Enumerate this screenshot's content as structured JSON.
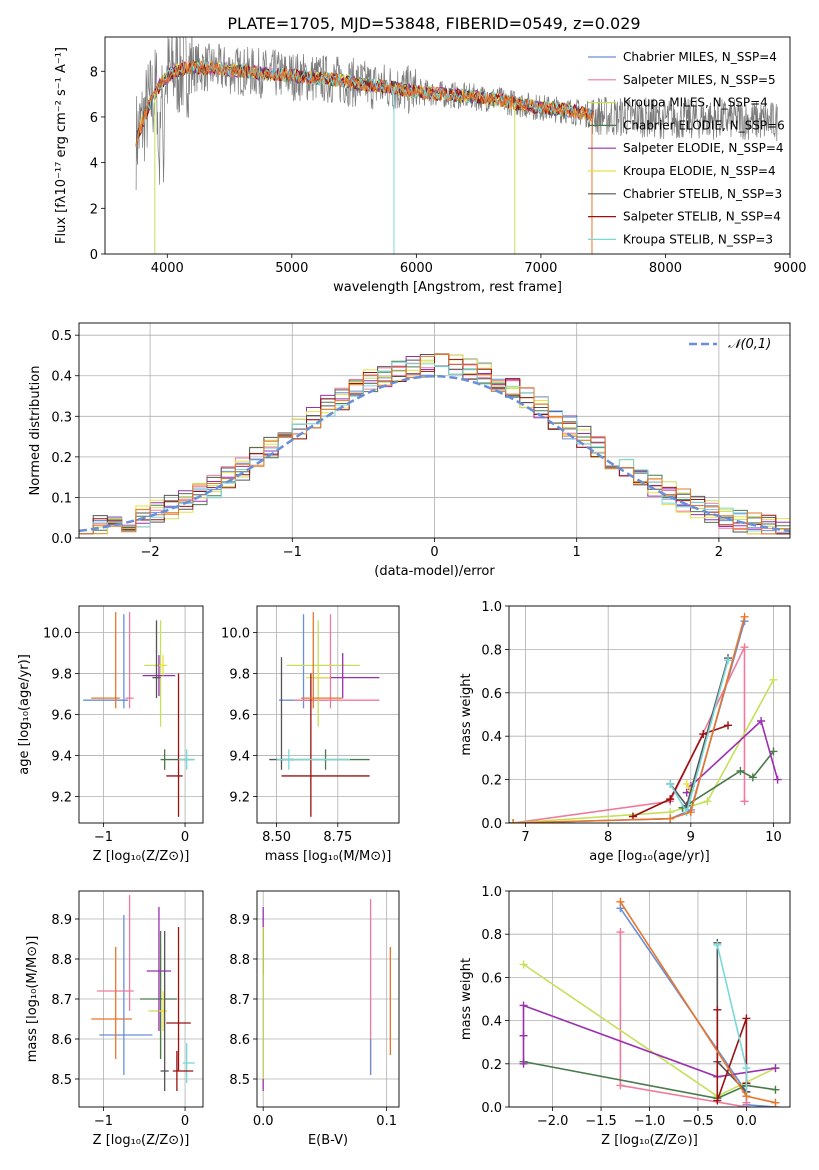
{
  "figure_title": "PLATE=1705, MJD=53848, FIBERID=0549, z=0.029",
  "colors": [
    "#6a8fd8",
    "#f07a9c",
    "#c5e05a",
    "#4a7a4a",
    "#9b2fb0",
    "#e8e046",
    "#555555",
    "#9b1010",
    "#7ad8d8",
    "#e8762a"
  ],
  "chart_data": [
    {
      "type": "line",
      "title": "PLATE=1705, MJD=53848, FIBERID=0549, z=0.029",
      "xlabel": "wavelength [Angstrom, rest frame]",
      "ylabel": "Flux [fλ10⁻¹⁷ erg cm⁻² s⁻¹ A⁻¹]",
      "xlim": [
        3500,
        9000
      ],
      "ylim": [
        0,
        9.5
      ],
      "xticks": [
        4000,
        5000,
        6000,
        7000,
        8000,
        9000
      ],
      "yticks": [
        0,
        2,
        4,
        6,
        8
      ],
      "legend_position": "top-right",
      "data_series_name": "",
      "data_envelope": {
        "x": [
          3750,
          3850,
          3950,
          4050,
          4200,
          4400,
          4600,
          4800,
          5000,
          5200,
          5400,
          5600,
          5800,
          6000,
          6200,
          6400,
          6600,
          6800,
          7000,
          7200,
          7400,
          7600,
          7800,
          8000,
          8200,
          8400,
          8600,
          8800,
          8900
        ],
        "y": [
          5.0,
          6.5,
          7.5,
          8.0,
          8.2,
          8.1,
          8.0,
          7.9,
          7.8,
          7.7,
          7.6,
          7.4,
          7.3,
          7.1,
          7.0,
          6.9,
          6.8,
          6.6,
          6.4,
          6.3,
          6.1,
          6.0,
          6.0,
          5.9,
          5.9,
          5.9,
          5.9,
          5.8,
          5.8
        ]
      },
      "series": [
        {
          "name": "Chabrier MILES, N_SSP=4"
        },
        {
          "name": "Salpeter MILES, N_SSP=5"
        },
        {
          "name": "Kroupa MILES, N_SSP=4"
        },
        {
          "name": "Chabrier ELODIE, N_SSP=6"
        },
        {
          "name": "Salpeter ELODIE, N_SSP=4"
        },
        {
          "name": "Kroupa ELODIE, N_SSP=4"
        },
        {
          "name": "Chabrier STELIB, N_SSP=3"
        },
        {
          "name": "Salpeter STELIB, N_SSP=4"
        },
        {
          "name": "Kroupa STELIB, N_SSP=3"
        }
      ]
    },
    {
      "type": "line",
      "xlabel": "(data-model)/error",
      "ylabel": "Normed distribution",
      "xlim": [
        -2.5,
        2.5
      ],
      "ylim": [
        0,
        0.53
      ],
      "xticks": [
        -2,
        -1,
        0,
        1,
        2
      ],
      "yticks": [
        0.0,
        0.1,
        0.2,
        0.3,
        0.4,
        0.5
      ],
      "grid": true,
      "legend_position": "top-right",
      "reference_curve": {
        "name": "𝒩(0,1)",
        "mean": 0,
        "sigma": 1
      },
      "histogram_bins": {
        "start": -2.5,
        "width": 0.1,
        "count": 50
      },
      "histogram_count": 10
    },
    {
      "type": "scatter",
      "xlabel": "Z [log₁₀(Z/Z⊙)]",
      "ylabel": "age  [log₁₀(age/yr)]",
      "xlim": [
        -1.3,
        0.22
      ],
      "ylim": [
        9.07,
        10.13
      ],
      "xticks": [
        -1,
        0
      ],
      "yticks": [
        9.2,
        9.4,
        9.6,
        9.8,
        10.0
      ],
      "grid": true,
      "points": [
        {
          "x": -0.75,
          "y": 9.67,
          "xerr": [
            0.5,
            0.05
          ],
          "yerr": [
            0.04,
            0.42
          ],
          "color": "#6a8fd8"
        },
        {
          "x": -0.68,
          "y": 9.68,
          "xerr": [
            0.05,
            0.05
          ],
          "yerr": [
            0.05,
            0.42
          ],
          "color": "#f07a9c"
        },
        {
          "x": -0.3,
          "y": 9.84,
          "xerr": [
            0.2,
            0.05
          ],
          "yerr": [
            0.3,
            0.22
          ],
          "color": "#c5e05a"
        },
        {
          "x": -0.25,
          "y": 9.38,
          "xerr": [
            0.05,
            0.35
          ],
          "yerr": [
            0.05,
            0.05
          ],
          "color": "#4a7a4a"
        },
        {
          "x": -0.32,
          "y": 9.79,
          "xerr": [
            0.2,
            0.2
          ],
          "yerr": [
            0.1,
            0.1
          ],
          "color": "#9b2fb0"
        },
        {
          "x": -0.27,
          "y": 9.84,
          "xerr": [
            0.05,
            0.05
          ],
          "yerr": [
            0.05,
            0.05
          ],
          "color": "#e8e046"
        },
        {
          "x": -0.35,
          "y": 9.78,
          "xerr": [
            0.05,
            0.05
          ],
          "yerr": [
            0.1,
            0.28
          ],
          "color": "#555555"
        },
        {
          "x": -0.08,
          "y": 9.3,
          "xerr": [
            0.15,
            0.05
          ],
          "yerr": [
            0.2,
            0.5
          ],
          "color": "#9b1010"
        },
        {
          "x": 0.02,
          "y": 9.38,
          "xerr": [
            0.1,
            0.1
          ],
          "yerr": [
            0.05,
            0.05
          ],
          "color": "#7ad8d8"
        },
        {
          "x": -0.85,
          "y": 9.68,
          "xerr": [
            0.3,
            0.05
          ],
          "yerr": [
            0.05,
            0.42
          ],
          "color": "#e8762a"
        }
      ]
    },
    {
      "type": "scatter",
      "xlabel": "mass [log₁₀(M/M⊙)]",
      "ylabel": "",
      "xlim": [
        8.42,
        9.0
      ],
      "ylim": [
        9.07,
        10.13
      ],
      "xticks": [
        8.5,
        8.75
      ],
      "yticks": [
        9.2,
        9.4,
        9.6,
        9.8,
        10.0
      ],
      "grid": true,
      "points": [
        {
          "x": 8.61,
          "y": 9.67,
          "xerr": [
            0.1,
            0.1
          ],
          "yerr": [
            0.04,
            0.42
          ],
          "color": "#6a8fd8"
        },
        {
          "x": 8.72,
          "y": 9.67,
          "xerr": [
            0.15,
            0.2
          ],
          "yerr": [
            0.04,
            0.42
          ],
          "color": "#f07a9c"
        },
        {
          "x": 8.67,
          "y": 9.84,
          "xerr": [
            0.13,
            0.17
          ],
          "yerr": [
            0.3,
            0.22
          ],
          "color": "#c5e05a"
        },
        {
          "x": 8.7,
          "y": 9.38,
          "xerr": [
            0.18,
            0.18
          ],
          "yerr": [
            0.05,
            0.05
          ],
          "color": "#4a7a4a"
        },
        {
          "x": 8.77,
          "y": 9.78,
          "xerr": [
            0.12,
            0.15
          ],
          "yerr": [
            0.1,
            0.12
          ],
          "color": "#9b2fb0"
        },
        {
          "x": 8.67,
          "y": 9.78,
          "xerr": [
            0.05,
            0.05
          ],
          "yerr": [
            0.05,
            0.05
          ],
          "color": "#e8e046"
        },
        {
          "x": 8.52,
          "y": 9.38,
          "xerr": [
            0.05,
            0.05
          ],
          "yerr": [
            0.05,
            0.5
          ],
          "color": "#555555"
        },
        {
          "x": 8.64,
          "y": 9.3,
          "xerr": [
            0.12,
            0.24
          ],
          "yerr": [
            0.2,
            0.5
          ],
          "color": "#9b1010"
        },
        {
          "x": 8.55,
          "y": 9.38,
          "xerr": [
            0.05,
            0.25
          ],
          "yerr": [
            0.05,
            0.05
          ],
          "color": "#7ad8d8"
        },
        {
          "x": 8.65,
          "y": 9.68,
          "xerr": [
            0.05,
            0.12
          ],
          "yerr": [
            0.05,
            0.42
          ],
          "color": "#e8762a"
        }
      ]
    },
    {
      "type": "line",
      "xlabel": "age  [log₁₀(age/yr)]",
      "ylabel": "mass weight",
      "xlim": [
        6.8,
        10.2
      ],
      "ylim": [
        0,
        1.0
      ],
      "xticks": [
        7,
        8,
        9,
        10
      ],
      "yticks": [
        0.0,
        0.2,
        0.4,
        0.6,
        0.8,
        1.0
      ],
      "grid": true,
      "series": [
        {
          "color": "#6a8fd8",
          "x": [
            6.85,
            8.75,
            9.0,
            9.65
          ],
          "y": [
            0.0,
            0.02,
            0.06,
            0.93
          ]
        },
        {
          "color": "#f07a9c",
          "x": [
            6.85,
            8.75,
            9.65,
            9.65
          ],
          "y": [
            0.0,
            0.1,
            0.81,
            0.1
          ]
        },
        {
          "color": "#c5e05a",
          "x": [
            6.85,
            8.75,
            9.2,
            10.0
          ],
          "y": [
            0.0,
            0.05,
            0.1,
            0.66
          ]
        },
        {
          "color": "#4a7a4a",
          "x": [
            8.9,
            8.9,
            9.6,
            9.75,
            10.0
          ],
          "y": [
            0.07,
            0.07,
            0.24,
            0.21,
            0.33
          ]
        },
        {
          "color": "#9b2fb0",
          "x": [
            8.95,
            9.0,
            9.85,
            10.05
          ],
          "y": [
            0.14,
            0.17,
            0.47,
            0.2
          ]
        },
        {
          "color": "#e8e046",
          "x": [
            8.95,
            9.0
          ],
          "y": [
            0.18,
            0.15
          ]
        },
        {
          "color": "#555555",
          "x": [
            8.75,
            8.95,
            9.45
          ],
          "y": [
            0.18,
            0.08,
            0.76
          ]
        },
        {
          "color": "#9b1010",
          "x": [
            8.3,
            8.75,
            9.15,
            9.45
          ],
          "y": [
            0.03,
            0.11,
            0.41,
            0.45
          ]
        },
        {
          "color": "#7ad8d8",
          "x": [
            8.75,
            8.95,
            9.45
          ],
          "y": [
            0.18,
            0.05,
            0.75
          ]
        },
        {
          "color": "#e8762a",
          "x": [
            6.85,
            8.75,
            9.0,
            9.65
          ],
          "y": [
            0.0,
            0.02,
            0.05,
            0.95
          ]
        }
      ]
    },
    {
      "type": "scatter",
      "xlabel": "Z [log₁₀(Z/Z⊙)]",
      "ylabel": "mass [log₁₀(M/M⊙)]",
      "xlim": [
        -1.3,
        0.22
      ],
      "ylim": [
        8.43,
        8.97
      ],
      "xticks": [
        -1,
        0
      ],
      "yticks": [
        8.5,
        8.6,
        8.7,
        8.8,
        8.9
      ],
      "grid": true,
      "points": [
        {
          "x": -0.75,
          "y": 8.61,
          "xerr": [
            0.3,
            0.35
          ],
          "yerr": [
            0.1,
            0.3
          ],
          "color": "#6a8fd8"
        },
        {
          "x": -0.68,
          "y": 8.72,
          "xerr": [
            0.4,
            0.05
          ],
          "yerr": [
            0.05,
            0.24
          ],
          "color": "#f07a9c"
        },
        {
          "x": -0.3,
          "y": 8.67,
          "xerr": [
            0.15,
            0.05
          ],
          "yerr": [
            0.12,
            0.17
          ],
          "color": "#c5e05a"
        },
        {
          "x": -0.3,
          "y": 8.7,
          "xerr": [
            0.25,
            0.2
          ],
          "yerr": [
            0.15,
            0.17
          ],
          "color": "#4a7a4a"
        },
        {
          "x": -0.32,
          "y": 8.77,
          "xerr": [
            0.15,
            0.15
          ],
          "yerr": [
            0.15,
            0.16
          ],
          "color": "#9b2fb0"
        },
        {
          "x": -0.27,
          "y": 8.67,
          "xerr": [
            0.05,
            0.05
          ],
          "yerr": [
            0.05,
            0.05
          ],
          "color": "#e8e046"
        },
        {
          "x": -0.25,
          "y": 8.52,
          "xerr": [
            0.05,
            0.05
          ],
          "yerr": [
            0.05,
            0.35
          ],
          "color": "#555555"
        },
        {
          "x": -0.08,
          "y": 8.64,
          "xerr": [
            0.15,
            0.15
          ],
          "yerr": [
            0.12,
            0.24
          ],
          "color": "#9b1010"
        },
        {
          "x": 0.02,
          "y": 8.54,
          "xerr": [
            0.05,
            0.1
          ],
          "yerr": [
            0.05,
            0.05
          ],
          "color": "#7ad8d8"
        },
        {
          "x": -0.85,
          "y": 8.65,
          "xerr": [
            0.3,
            0.2
          ],
          "yerr": [
            0.1,
            0.18
          ],
          "color": "#e8762a"
        },
        {
          "x": -0.1,
          "y": 8.52,
          "xerr": [
            0.05,
            0.2
          ],
          "yerr": [
            0.05,
            0.05
          ],
          "color": "#9b1010"
        }
      ]
    },
    {
      "type": "scatter",
      "xlabel": "E(B-V)",
      "ylabel": "",
      "xlim": [
        -0.005,
        0.11
      ],
      "ylim": [
        8.43,
        8.97
      ],
      "xticks": [
        0.0,
        0.1
      ],
      "yticks": [
        8.5,
        8.6,
        8.7,
        8.8,
        8.9
      ],
      "grid": true,
      "vertical_errors": [
        {
          "x": 0.0,
          "ymin": 8.47,
          "ymax": 8.93,
          "color": "#9b2fb0"
        },
        {
          "x": 0.0,
          "ymin": 8.76,
          "ymax": 8.88,
          "color": "#9b1010"
        },
        {
          "x": 0.0,
          "ymin": 8.5,
          "ymax": 8.88,
          "color": "#c5e05a"
        },
        {
          "x": 0.087,
          "ymin": 8.51,
          "ymax": 8.95,
          "color": "#f07a9c"
        },
        {
          "x": 0.087,
          "ymin": 8.51,
          "ymax": 8.6,
          "color": "#6a8fd8"
        },
        {
          "x": 0.103,
          "ymin": 8.56,
          "ymax": 8.83,
          "color": "#e8762a"
        }
      ]
    },
    {
      "type": "line",
      "xlabel": "Z [log₁₀(Z/Z⊙)]",
      "ylabel": "mass weight",
      "xlim": [
        -2.45,
        0.45
      ],
      "ylim": [
        0,
        1.0
      ],
      "xticks": [
        -2.0,
        -1.5,
        -1.0,
        -0.5,
        0.0
      ],
      "yticks": [
        0.0,
        0.2,
        0.4,
        0.6,
        0.8,
        1.0
      ],
      "grid": true,
      "series": [
        {
          "color": "#6a8fd8",
          "x": [
            -1.3,
            0.0,
            0.0,
            0.3
          ],
          "y": [
            0.92,
            0.07,
            0.01,
            0.0
          ]
        },
        {
          "color": "#f07a9c",
          "x": [
            -1.3,
            -1.3,
            0.0,
            0.0
          ],
          "y": [
            0.81,
            0.1,
            0.0,
            0.02
          ]
        },
        {
          "color": "#c5e05a",
          "x": [
            -2.3,
            -0.3,
            0.3
          ],
          "y": [
            0.66,
            0.05,
            0.18
          ]
        },
        {
          "color": "#4a7a4a",
          "x": [
            -2.3,
            -0.3,
            0.0,
            0.3
          ],
          "y": [
            0.21,
            0.04,
            0.1,
            0.08
          ]
        },
        {
          "color": "#9b2fb0",
          "x": [
            -2.3,
            -2.3,
            -2.3,
            -0.3,
            0.3
          ],
          "y": [
            0.2,
            0.33,
            0.47,
            0.14,
            0.18
          ]
        },
        {
          "color": "#555555",
          "x": [
            -0.3,
            -0.3,
            0.0
          ],
          "y": [
            0.76,
            0.21,
            0.07
          ]
        },
        {
          "color": "#9b1010",
          "x": [
            -0.3,
            -0.3,
            0.0,
            0.0
          ],
          "y": [
            0.45,
            0.03,
            0.41,
            0.11
          ]
        },
        {
          "color": "#7ad8d8",
          "x": [
            -0.3,
            0.0,
            0.0
          ],
          "y": [
            0.75,
            0.18,
            0.05
          ]
        },
        {
          "color": "#e8762a",
          "x": [
            -1.3,
            0.0,
            0.3
          ],
          "y": [
            0.95,
            0.05,
            0.02
          ]
        }
      ]
    }
  ]
}
